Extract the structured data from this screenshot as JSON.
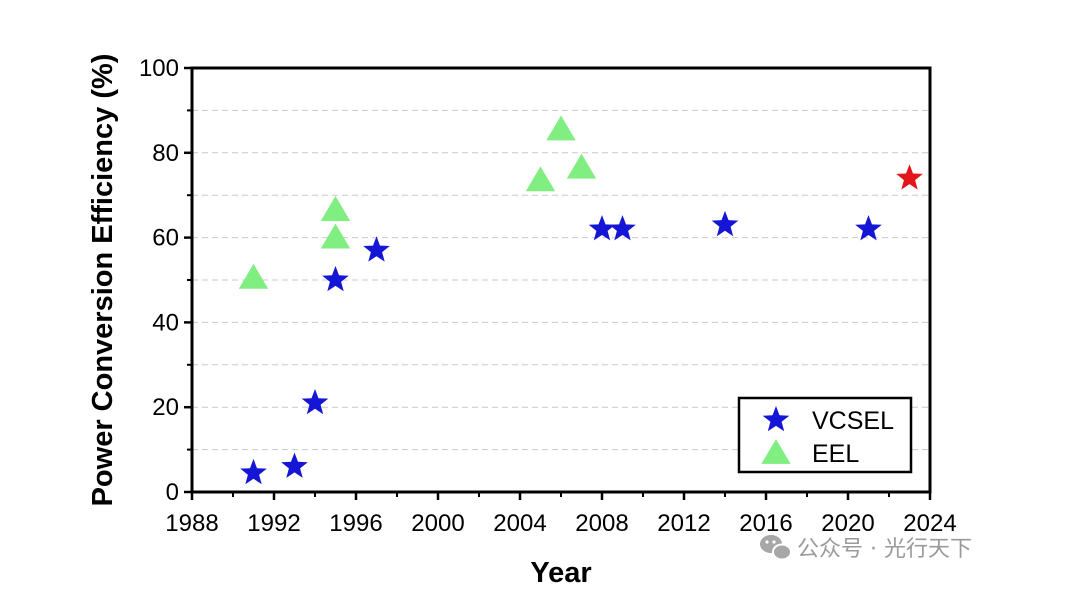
{
  "chart_data": {
    "type": "scatter",
    "title": "",
    "xlabel": "Year",
    "ylabel": "Power Conversion Efficiency (%)",
    "xlim": [
      1988,
      2024
    ],
    "ylim": [
      0,
      100
    ],
    "x_ticks": [
      1988,
      1992,
      1996,
      2000,
      2004,
      2008,
      2012,
      2016,
      2020,
      2024
    ],
    "y_ticks": [
      0,
      20,
      40,
      60,
      80,
      100
    ],
    "grid": "horizontal dashed at every 10",
    "legend_position": "bottom-right",
    "series": [
      {
        "name": "VCSEL",
        "marker": "star",
        "color": "#1515d6",
        "points": [
          {
            "x": 1991,
            "y": 4.5
          },
          {
            "x": 1993,
            "y": 6
          },
          {
            "x": 1994,
            "y": 21
          },
          {
            "x": 1995,
            "y": 50
          },
          {
            "x": 1997,
            "y": 57
          },
          {
            "x": 2008,
            "y": 62
          },
          {
            "x": 2009,
            "y": 62
          },
          {
            "x": 2014,
            "y": 63
          },
          {
            "x": 2021,
            "y": 62
          }
        ]
      },
      {
        "name": "EEL",
        "marker": "triangle",
        "color": "#80ee80",
        "points": [
          {
            "x": 1991,
            "y": 50.5
          },
          {
            "x": 1995,
            "y": 66.5
          },
          {
            "x": 1995,
            "y": 60
          },
          {
            "x": 2005,
            "y": 73.5
          },
          {
            "x": 2006,
            "y": 85.5
          },
          {
            "x": 2007,
            "y": 76.5
          }
        ]
      },
      {
        "marker": "star",
        "color": "#e3151a",
        "points": [
          {
            "x": 2023,
            "y": 74
          }
        ]
      }
    ]
  },
  "watermark": {
    "text": "公众号 · 光行天下",
    "icon": "wechat-icon"
  }
}
